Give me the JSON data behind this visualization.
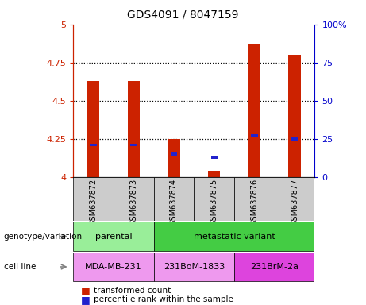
{
  "title": "GDS4091 / 8047159",
  "samples": [
    "GSM637872",
    "GSM637873",
    "GSM637874",
    "GSM637875",
    "GSM637876",
    "GSM637877"
  ],
  "red_values": [
    4.63,
    4.63,
    4.25,
    4.04,
    4.87,
    4.8
  ],
  "blue_values": [
    4.2,
    4.2,
    4.14,
    4.12,
    4.26,
    4.24
  ],
  "ylim": [
    4.0,
    5.0
  ],
  "yticks_left": [
    4.0,
    4.25,
    4.5,
    4.75,
    5.0
  ],
  "yticks_right": [
    0,
    25,
    50,
    75,
    100
  ],
  "ylabel_left_color": "#cc2200",
  "ylabel_right_color": "#0000cc",
  "bar_width": 0.3,
  "red_color": "#cc2200",
  "blue_color": "#2222cc",
  "genotype_groups": [
    {
      "label": "parental",
      "samples": [
        0,
        1
      ],
      "color": "#99ee99"
    },
    {
      "label": "metastatic variant",
      "samples": [
        2,
        3,
        4,
        5
      ],
      "color": "#44cc44"
    }
  ],
  "cell_line_groups": [
    {
      "label": "MDA-MB-231",
      "samples": [
        0,
        1
      ],
      "color": "#ee99ee"
    },
    {
      "label": "231BoM-1833",
      "samples": [
        2,
        3
      ],
      "color": "#ee99ee"
    },
    {
      "label": "231BrM-2a",
      "samples": [
        4,
        5
      ],
      "color": "#dd44dd"
    }
  ],
  "legend_red": "transformed count",
  "legend_blue": "percentile rank within the sample",
  "label_genotype": "genotype/variation",
  "label_cellline": "cell line",
  "bg_gray": "#cccccc"
}
